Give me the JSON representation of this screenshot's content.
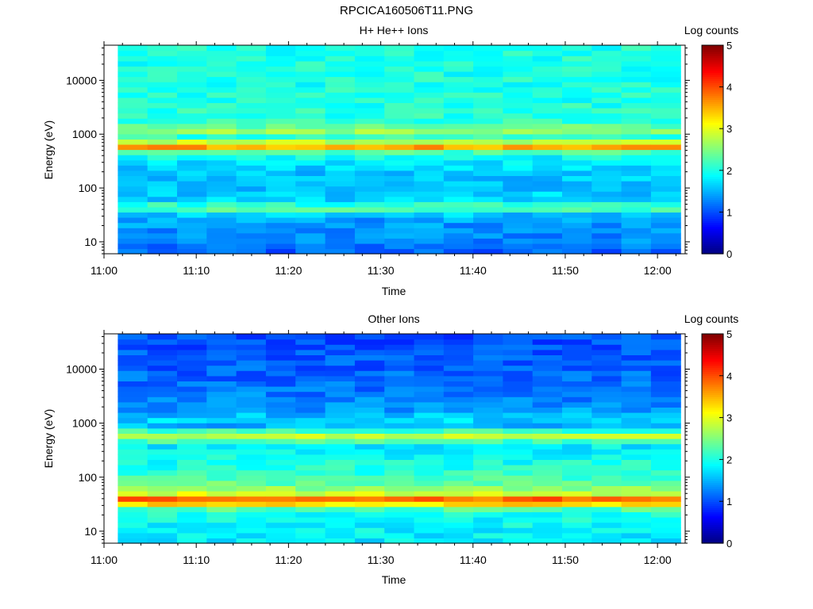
{
  "title": "RPCICA160506T11.PNG",
  "panels": [
    {
      "title": "H+ He++ Ions",
      "xlabel": "Time",
      "ylabel": "Energy (eV)",
      "colorbar_label": "Log counts",
      "x_ticks": [
        "11:00",
        "11:10",
        "11:20",
        "11:30",
        "11:40",
        "11:50",
        "12:00"
      ],
      "y_ticks": [
        "10",
        "100",
        "1000",
        "10000"
      ],
      "colorbar_ticks": [
        "0",
        "1",
        "2",
        "3",
        "4",
        "5"
      ]
    },
    {
      "title": "Other Ions",
      "xlabel": "Time",
      "ylabel": "Energy (eV)",
      "colorbar_label": "Log counts",
      "x_ticks": [
        "11:00",
        "11:10",
        "11:20",
        "11:30",
        "11:40",
        "11:50",
        "12:00"
      ],
      "y_ticks": [
        "10",
        "100",
        "1000",
        "10000"
      ],
      "colorbar_ticks": [
        "0",
        "1",
        "2",
        "3",
        "4",
        "5"
      ]
    }
  ],
  "chart_data": [
    {
      "type": "heatmap",
      "title": "H+ He++ Ions",
      "xlabel": "Time",
      "ylabel": "Energy (eV)",
      "yscale": "log",
      "xlim": [
        "11:00",
        "12:03"
      ],
      "ylim": [
        6,
        45000
      ],
      "data_x_range": [
        "11:01.5",
        "12:02.5"
      ],
      "colorbar": {
        "label": "Log counts",
        "range": [
          0,
          5
        ],
        "colormap": "jet"
      },
      "energy_profile": [
        {
          "energy_eV": 7,
          "log_counts": 1.1
        },
        {
          "energy_eV": 10,
          "log_counts": 1.3
        },
        {
          "energy_eV": 15,
          "log_counts": 1.3
        },
        {
          "energy_eV": 25,
          "log_counts": 1.4
        },
        {
          "energy_eV": 32,
          "log_counts": 1.6
        },
        {
          "energy_eV": 40,
          "log_counts": 2.2
        },
        {
          "energy_eV": 45,
          "log_counts": 2.5
        },
        {
          "energy_eV": 55,
          "log_counts": 1.7
        },
        {
          "energy_eV": 100,
          "log_counts": 1.6
        },
        {
          "energy_eV": 200,
          "log_counts": 1.6
        },
        {
          "energy_eV": 350,
          "log_counts": 1.8
        },
        {
          "energy_eV": 480,
          "log_counts": 2.3
        },
        {
          "energy_eV": 550,
          "log_counts": 3.3
        },
        {
          "energy_eV": 600,
          "log_counts": 3.7
        },
        {
          "energy_eV": 680,
          "log_counts": 3.2
        },
        {
          "energy_eV": 800,
          "log_counts": 2.2
        },
        {
          "energy_eV": 1000,
          "log_counts": 2.0
        },
        {
          "energy_eV": 1200,
          "log_counts": 2.9
        },
        {
          "energy_eV": 1300,
          "log_counts": 2.8
        },
        {
          "energy_eV": 1500,
          "log_counts": 2.1
        },
        {
          "energy_eV": 5000,
          "log_counts": 2.0
        },
        {
          "energy_eV": 40000,
          "log_counts": 2.0
        }
      ]
    },
    {
      "type": "heatmap",
      "title": "Other Ions",
      "xlabel": "Time",
      "ylabel": "Energy (eV)",
      "yscale": "log",
      "xlim": [
        "11:00",
        "12:03"
      ],
      "ylim": [
        6,
        45000
      ],
      "data_x_range": [
        "11:01.5",
        "12:02.5"
      ],
      "colorbar": {
        "label": "Log counts",
        "range": [
          0,
          5
        ],
        "colormap": "jet"
      },
      "energy_profile": [
        {
          "energy_eV": 7,
          "log_counts": 1.8
        },
        {
          "energy_eV": 15,
          "log_counts": 1.9
        },
        {
          "energy_eV": 22,
          "log_counts": 2.0
        },
        {
          "energy_eV": 28,
          "log_counts": 2.4
        },
        {
          "energy_eV": 33,
          "log_counts": 3.5
        },
        {
          "energy_eV": 38,
          "log_counts": 4.0
        },
        {
          "energy_eV": 44,
          "log_counts": 3.6
        },
        {
          "energy_eV": 50,
          "log_counts": 2.9
        },
        {
          "energy_eV": 70,
          "log_counts": 2.4
        },
        {
          "energy_eV": 120,
          "log_counts": 2.1
        },
        {
          "energy_eV": 250,
          "log_counts": 1.9
        },
        {
          "energy_eV": 400,
          "log_counts": 1.8
        },
        {
          "energy_eV": 520,
          "log_counts": 2.5
        },
        {
          "energy_eV": 600,
          "log_counts": 2.9
        },
        {
          "energy_eV": 700,
          "log_counts": 2.3
        },
        {
          "energy_eV": 900,
          "log_counts": 1.5
        },
        {
          "energy_eV": 1200,
          "log_counts": 1.7
        },
        {
          "energy_eV": 2000,
          "log_counts": 1.3
        },
        {
          "energy_eV": 10000,
          "log_counts": 1.1
        },
        {
          "energy_eV": 40000,
          "log_counts": 1.0
        }
      ]
    }
  ]
}
